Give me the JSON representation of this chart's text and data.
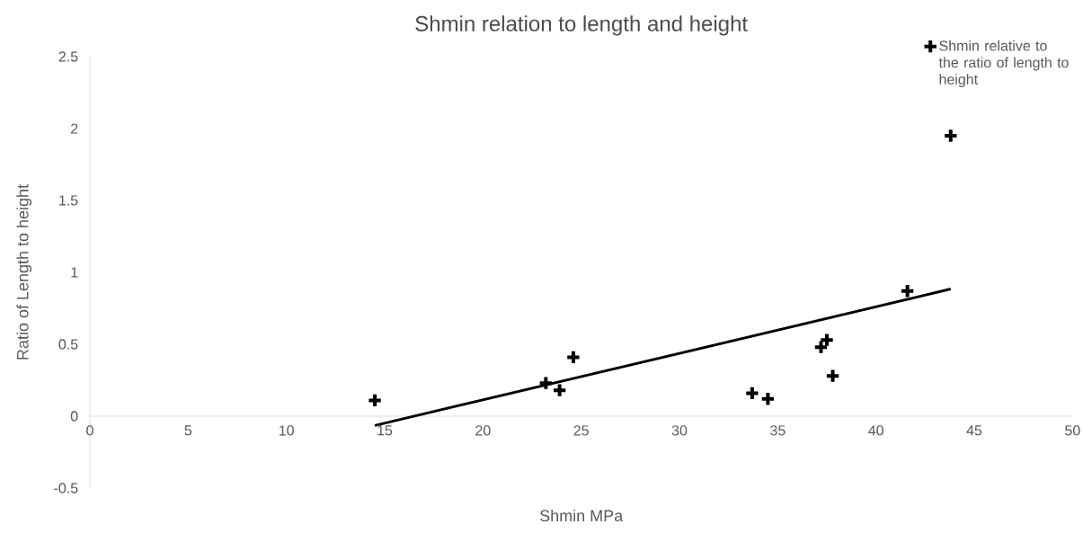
{
  "chart_data": {
    "type": "scatter",
    "title": "Shmin relation to length and height",
    "xlabel": "Shmin MPa",
    "ylabel": "Ratio of Length to height",
    "xlim": [
      0,
      50
    ],
    "xticks": [
      0,
      5,
      10,
      15,
      20,
      25,
      30,
      35,
      40,
      45,
      50
    ],
    "ylim": [
      -0.5,
      2.5
    ],
    "yticks": [
      -0.5,
      0,
      0.5,
      1,
      1.5,
      2,
      2.5
    ],
    "marker": "cross",
    "legend": "top right",
    "grid": false,
    "series": [
      {
        "name": "Shmin relative to the ratio of length to height",
        "color": "#000000",
        "x": [
          14.5,
          23.2,
          23.9,
          24.6,
          33.7,
          34.5,
          37.2,
          37.5,
          37.8,
          41.6,
          43.8
        ],
        "values": [
          0.11,
          0.23,
          0.18,
          0.41,
          0.16,
          0.12,
          0.48,
          0.53,
          0.28,
          0.87,
          1.95
        ]
      },
      {
        "type": "line",
        "marker": "none",
        "color": "#000000",
        "x": [
          14.5,
          43.8
        ],
        "values": [
          -0.065,
          0.884
        ]
      }
    ]
  }
}
